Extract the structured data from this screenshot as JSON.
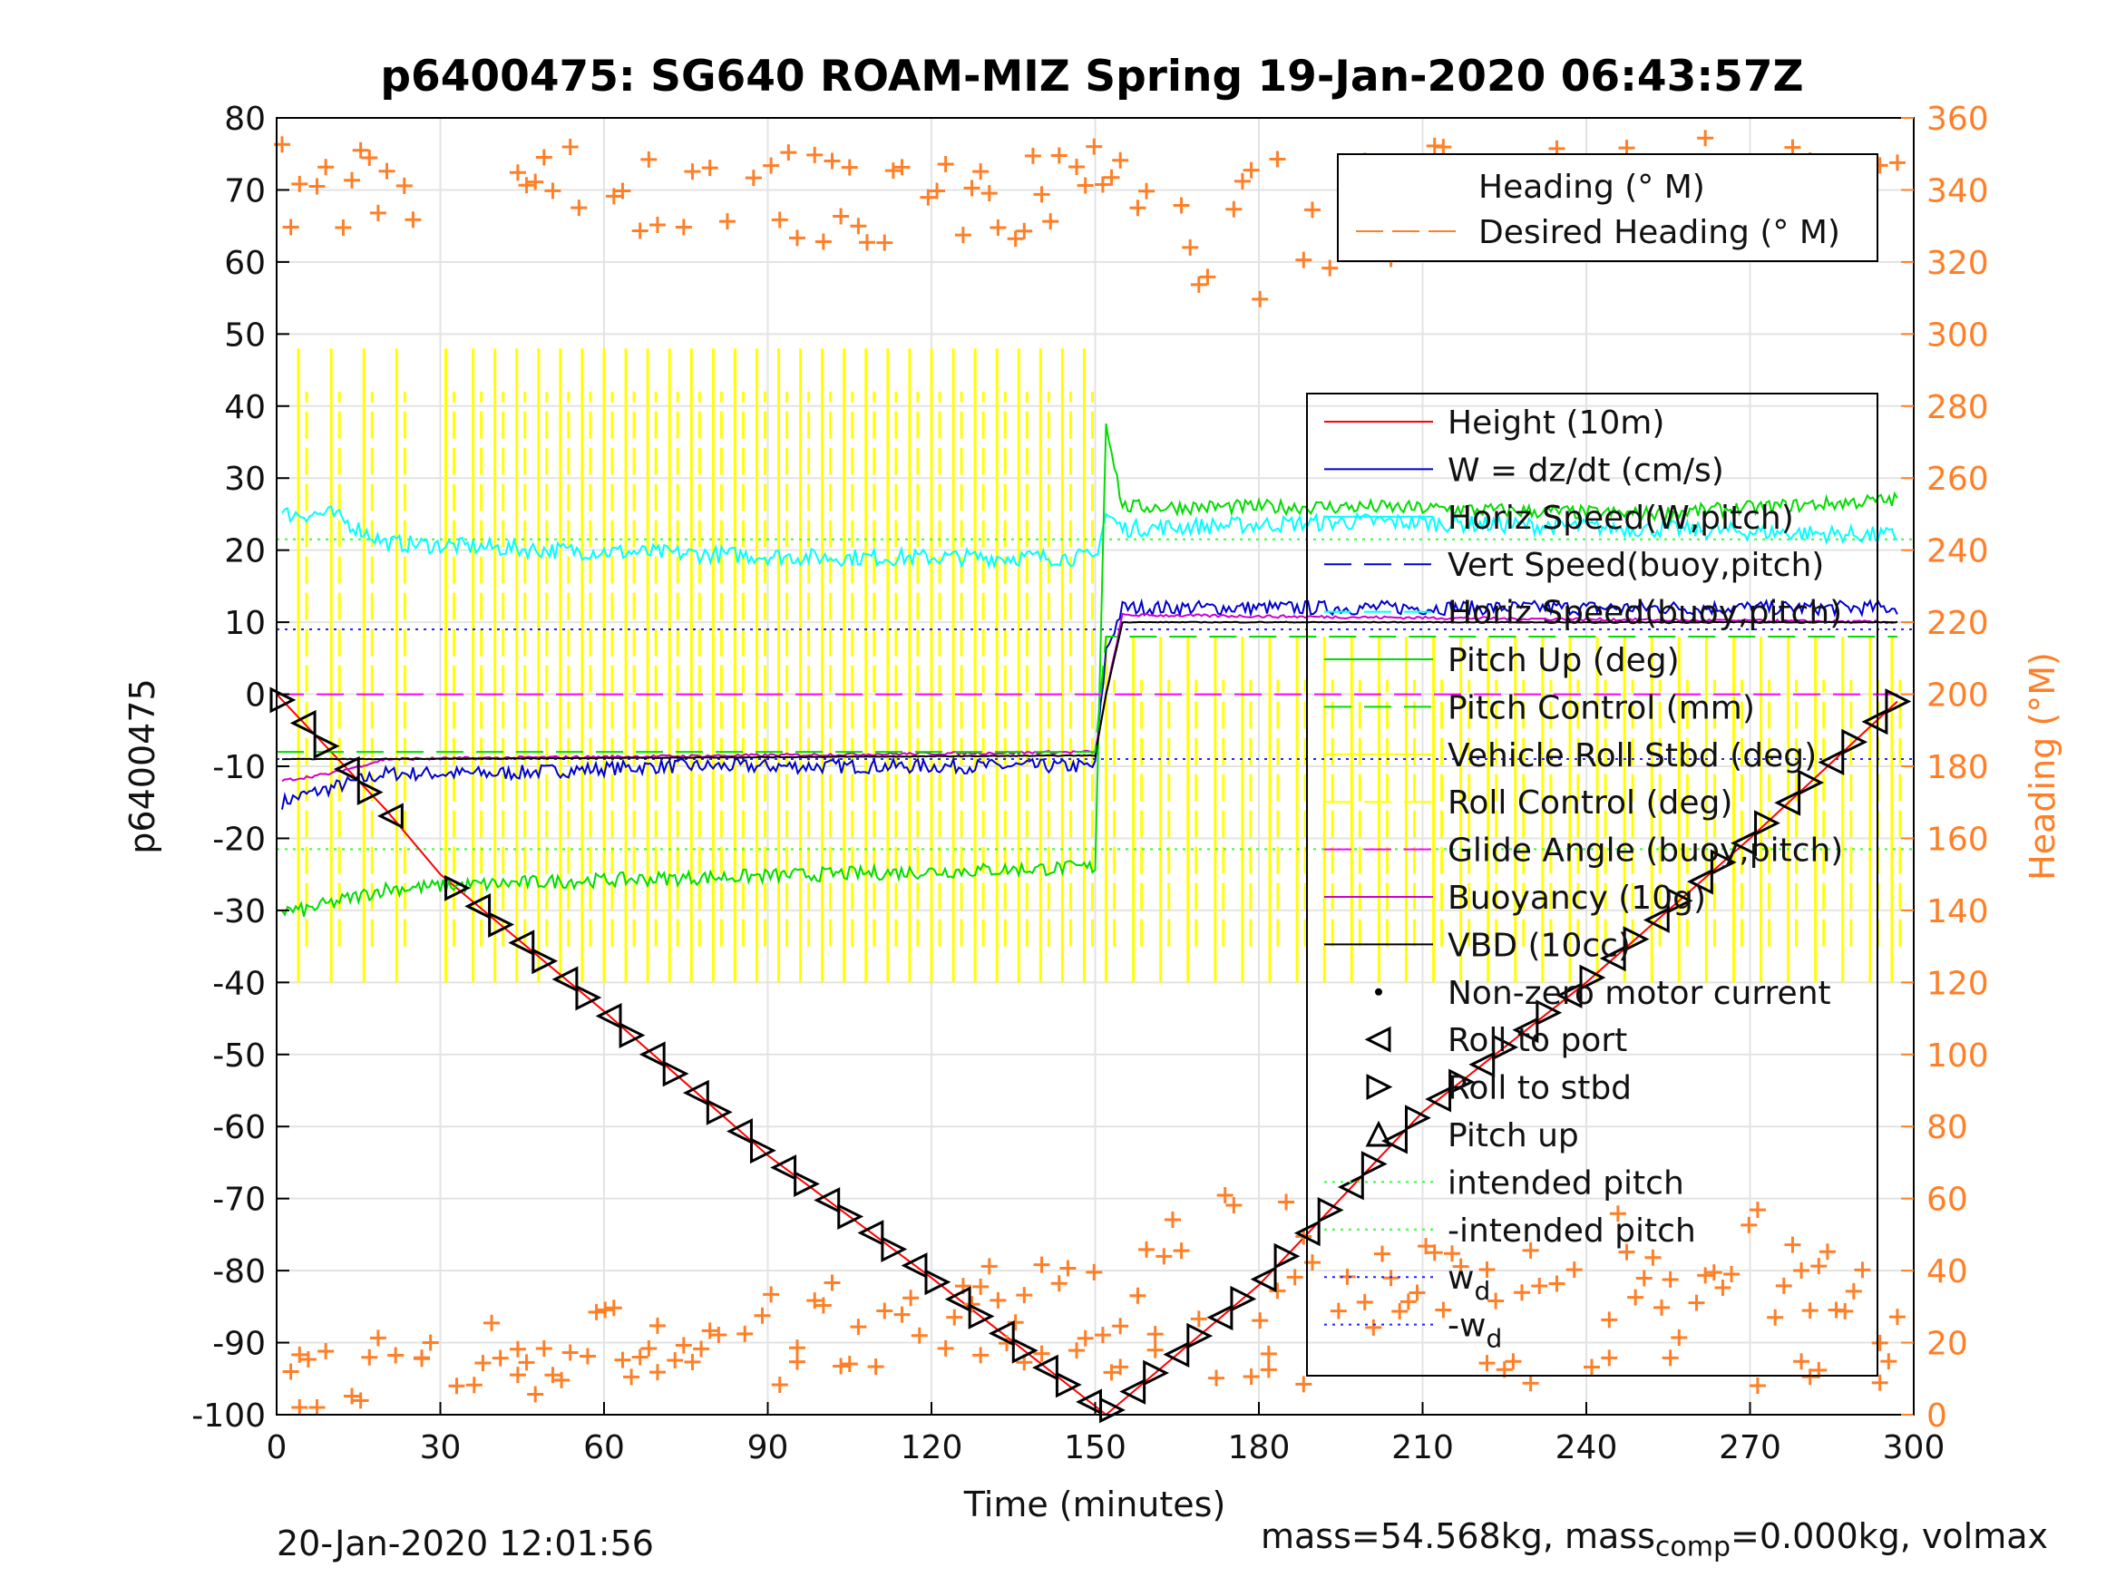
{
  "chart_data": {
    "type": "line",
    "title": "p6400475: SG640 ROAM-MIZ Spring 19-Jan-2020 06:43:57Z",
    "xlabel": "Time (minutes)",
    "ylabel": "p6400475",
    "y2label": "Heading (°M)",
    "xlim": [
      0,
      300
    ],
    "ylim": [
      -100,
      80
    ],
    "y2lim": [
      0,
      360
    ],
    "xticks": [
      0,
      30,
      60,
      90,
      120,
      150,
      180,
      210,
      240,
      270,
      300
    ],
    "yticks": [
      80,
      70,
      60,
      50,
      40,
      30,
      20,
      10,
      0,
      -10,
      -20,
      -30,
      -40,
      -50,
      -60,
      -70,
      -80,
      -90,
      -100
    ],
    "y2ticks": [
      360,
      340,
      320,
      300,
      280,
      260,
      240,
      220,
      200,
      180,
      160,
      140,
      120,
      100,
      80,
      60,
      40,
      20,
      0
    ],
    "grid": true,
    "legend_heading": {
      "placement": "top-right",
      "entries": [
        "Heading (° M)",
        "Desired Heading (° M)"
      ]
    },
    "legend_main": {
      "placement": "right",
      "entries": [
        {
          "label": "Height (10m)",
          "color": "#ff0000",
          "style": "solid"
        },
        {
          "label": "W = dz/dt (cm/s)",
          "color": "#0000cc",
          "style": "solid"
        },
        {
          "label": "Horiz Speed(W,pitch)",
          "color": "#00ffff",
          "style": "solid"
        },
        {
          "label": "Vert Speed(buoy,pitch)",
          "color": "#0000cc",
          "style": "dashed"
        },
        {
          "label": "Horiz Speed(buoy,pitch)",
          "color": "#00ffff",
          "style": "dashed"
        },
        {
          "label": "Pitch Up (deg)",
          "color": "#00dd00",
          "style": "solid"
        },
        {
          "label": "Pitch Control (mm)",
          "color": "#00dd00",
          "style": "dashed"
        },
        {
          "label": "Vehicle Roll Stbd (deg)",
          "color": "#ffff00",
          "style": "solid"
        },
        {
          "label": "Roll Control (deg)",
          "color": "#ffff00",
          "style": "dashed"
        },
        {
          "label": "Glide Angle (buoy,pitch)",
          "color": "#ff00ff",
          "style": "dashed"
        },
        {
          "label": "Buoyancy (10g)",
          "color": "#cc00cc",
          "style": "solid"
        },
        {
          "label": "VBD (10cc)",
          "color": "#000000",
          "style": "solid"
        },
        {
          "label": "Non-zero motor current",
          "color": "#000000",
          "style": "dot"
        },
        {
          "label": "Roll to port",
          "color": "#000000",
          "style": "tri-left"
        },
        {
          "label": "Roll to stbd",
          "color": "#000000",
          "style": "tri-right"
        },
        {
          "label": "Pitch up",
          "color": "#000000",
          "style": "tri-up"
        },
        {
          "label": "intended pitch",
          "color": "#33ff33",
          "style": "dotted"
        },
        {
          "label": "-intended pitch",
          "color": "#33ff33",
          "style": "dotted"
        },
        {
          "label": "w",
          "sub": "d",
          "color": "#2222ff",
          "style": "dotted"
        },
        {
          "label": "-w",
          "sub": "d",
          "color": "#2222ff",
          "style": "dotted"
        }
      ]
    },
    "series": [
      {
        "name": "Height (10m)",
        "axis": "left",
        "x": [
          0,
          20,
          30,
          60,
          90,
          120,
          152,
          180,
          210,
          240,
          270,
          297
        ],
        "y": [
          0,
          -16,
          -25,
          -44,
          -64,
          -81,
          -100,
          -82,
          -58,
          -40,
          -20,
          -1
        ]
      },
      {
        "name": "W = dz/dt (cm/s)",
        "axis": "left",
        "x": [
          1,
          5,
          10,
          20,
          40,
          70,
          100,
          130,
          150,
          152,
          155,
          200,
          250,
          297
        ],
        "y": [
          -15,
          -14,
          -13,
          -11,
          -11,
          -10,
          -10,
          -10,
          -10,
          6,
          12,
          12,
          12,
          12
        ]
      },
      {
        "name": "Horiz Speed(W,pitch)",
        "axis": "left",
        "x": [
          1,
          10,
          20,
          50,
          100,
          150,
          152,
          155,
          200,
          250,
          297
        ],
        "y": [
          25,
          25,
          21,
          20,
          19,
          19,
          25,
          23,
          24,
          23,
          22
        ]
      },
      {
        "name": "Pitch Up (deg)",
        "axis": "left",
        "x": [
          1,
          5,
          20,
          50,
          100,
          150,
          152,
          155,
          200,
          250,
          297
        ],
        "y": [
          -30,
          -30,
          -27,
          -26,
          -25,
          -24,
          38,
          26,
          26,
          25,
          27
        ]
      },
      {
        "name": "Buoyancy (10g)",
        "axis": "left",
        "x": [
          1,
          10,
          20,
          150,
          152,
          155,
          297
        ],
        "y": [
          -12,
          -11,
          -9,
          -8,
          0,
          11,
          10
        ]
      },
      {
        "name": "VBD (10cc)",
        "axis": "left",
        "x": [
          1,
          20,
          150,
          152,
          155,
          297
        ],
        "y": [
          -9,
          -9,
          -8.5,
          0,
          10,
          10
        ]
      },
      {
        "name": "Glide Angle (buoy,pitch)",
        "axis": "left",
        "x": [
          0,
          297
        ],
        "y": [
          0,
          0
        ]
      },
      {
        "name": "Pitch Control (mm)",
        "axis": "left",
        "x": [
          0,
          150,
          152,
          297
        ],
        "y": [
          -8,
          -8,
          8,
          8
        ]
      }
    ],
    "reference_lines": [
      {
        "label": "intended pitch",
        "y": 21.5
      },
      {
        "label": "-intended pitch",
        "y": -21.5
      },
      {
        "label": "wd",
        "y": 9
      },
      {
        "label": "-wd",
        "y": -9
      }
    ],
    "roll_stbd_spikes_x": [
      4,
      10,
      16,
      22,
      31,
      36,
      40,
      44,
      48,
      52,
      56,
      60,
      64,
      68,
      72,
      76,
      80,
      84,
      88,
      92,
      96,
      100,
      104,
      108,
      112,
      116,
      120,
      124,
      128,
      132,
      136,
      140,
      144,
      148,
      152,
      157,
      162,
      167,
      172,
      177,
      182,
      187,
      192,
      197,
      202,
      207,
      212,
      217,
      222,
      227,
      232,
      237,
      242,
      247,
      252,
      257,
      262,
      267,
      272,
      277,
      282,
      287,
      292,
      296
    ],
    "heading_note": "Heading markers on right axis (0-360 °M), scattered near 340-360 and 0-60"
  },
  "footer": {
    "timestamp": "20-Jan-2020 12:01:56",
    "mass_prefix": "mass=54.568kg, mass",
    "mass_sub": "comp",
    "mass_suffix": "=0.000kg, volmax"
  }
}
